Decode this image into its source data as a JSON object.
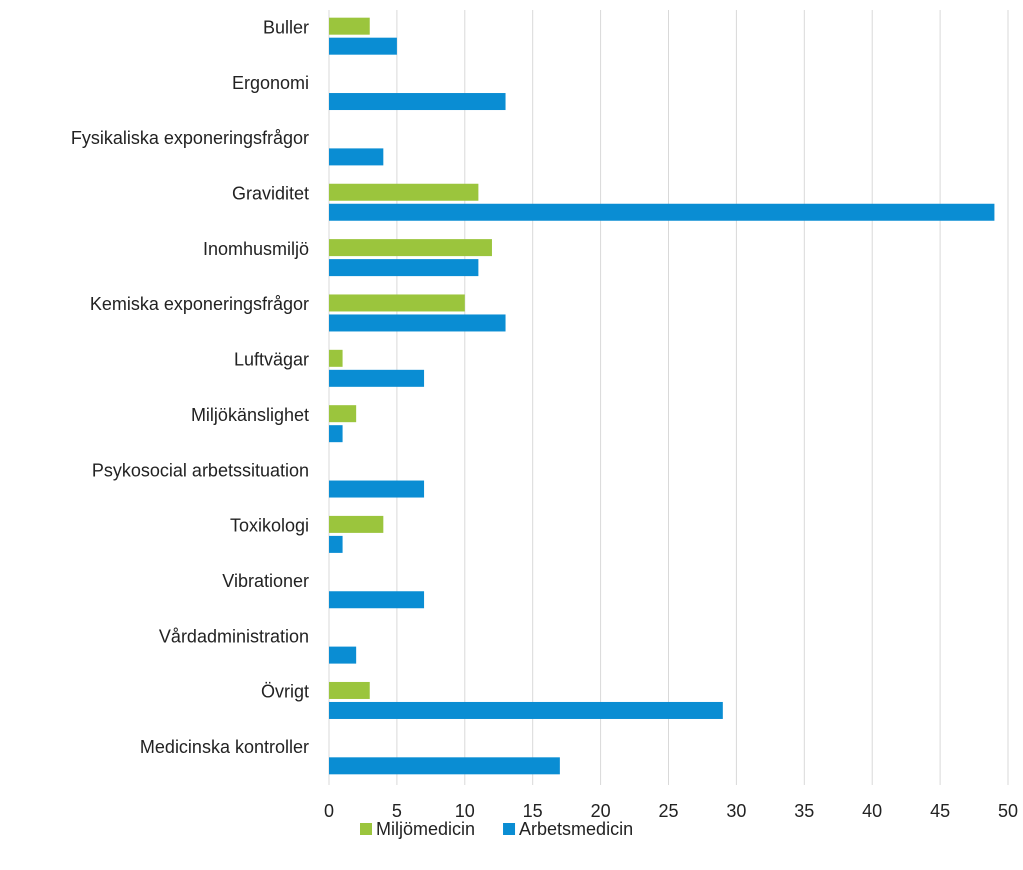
{
  "chart_data": {
    "type": "bar",
    "orientation": "horizontal",
    "categories": [
      "Buller",
      "Ergonomi",
      "Fysikaliska exponeringsfrågor",
      "Graviditet",
      "Inomhusmiljö",
      "Kemiska exponeringsfrågor",
      "Luftvägar",
      "Miljökänslighet",
      "Psykosocial arbetssituation",
      "Toxikologi",
      "Vibrationer",
      "Vårdadministration",
      "Övrigt",
      "Medicinska kontroller"
    ],
    "series": [
      {
        "name": "Miljömedicin",
        "color": "#9bc53d",
        "values": [
          3,
          0,
          0,
          11,
          12,
          10,
          1,
          2,
          0,
          4,
          0,
          0,
          3,
          0
        ]
      },
      {
        "name": "Arbetsmedicin",
        "color": "#0a8dd3",
        "values": [
          5,
          13,
          4,
          49,
          11,
          13,
          7,
          1,
          7,
          1,
          7,
          2,
          29,
          17
        ]
      }
    ],
    "xlim": [
      0,
      50
    ],
    "xticks": [
      0,
      5,
      10,
      15,
      20,
      25,
      30,
      35,
      40,
      45,
      50
    ],
    "grid": true,
    "legend": "bottom"
  }
}
